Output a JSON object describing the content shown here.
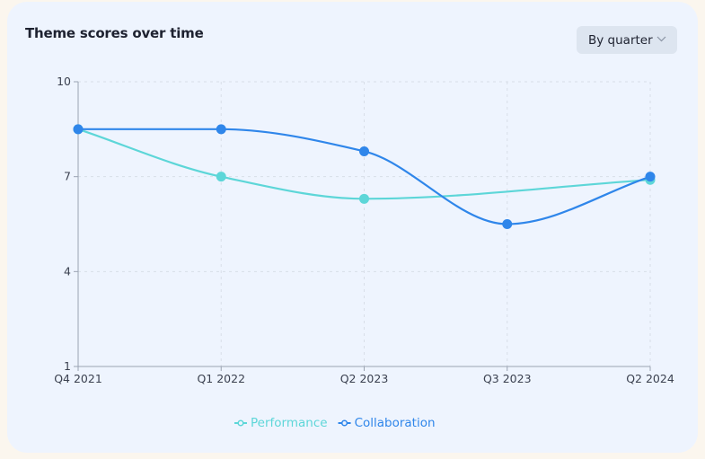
{
  "header": {
    "title": "Theme scores over time",
    "period_select": "By quarter",
    "period_icon": "chevron-down-icon"
  },
  "colors": {
    "performance": "#5dd6d8",
    "collaboration": "#2f86ea",
    "grid": "#d8dee8",
    "axis": "#9aa3b2"
  },
  "chart_data": {
    "type": "line",
    "title": "Theme scores over time",
    "xlabel": "",
    "ylabel": "",
    "categories": [
      "Q4 2021",
      "Q1 2022",
      "Q2 2023",
      "Q3 2023",
      "Q2 2024"
    ],
    "yticks": [
      1,
      4,
      7,
      10
    ],
    "ylim": [
      1,
      10
    ],
    "grid": true,
    "legend_position": "bottom-center",
    "series": [
      {
        "name": "Performance",
        "values": [
          8.5,
          7.0,
          6.3,
          null,
          6.9
        ],
        "color": "#5dd6d8"
      },
      {
        "name": "Collaboration",
        "values": [
          8.5,
          8.5,
          7.8,
          5.5,
          7.0
        ],
        "color": "#2f86ea"
      }
    ]
  }
}
